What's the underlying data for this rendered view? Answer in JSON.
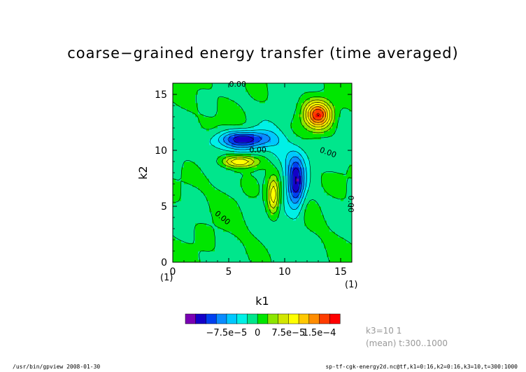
{
  "chart_data": {
    "type": "heatmap",
    "title": "coarse−grained energy transfer (time averaged)",
    "xlabel": "k1",
    "ylabel": "k2",
    "xlim": [
      0,
      16
    ],
    "ylim": [
      0,
      16
    ],
    "x_ticks": [
      {
        "value": 0,
        "label": "0"
      },
      {
        "value": 5,
        "label": "5"
      },
      {
        "value": 10,
        "label": "10"
      },
      {
        "value": 15,
        "label": "15"
      }
    ],
    "y_ticks": [
      {
        "value": 0,
        "label": "0"
      },
      {
        "value": 5,
        "label": "5"
      },
      {
        "value": 10,
        "label": "10"
      },
      {
        "value": 15,
        "label": "15"
      }
    ],
    "x_unit": "(1)",
    "y_unit": "(1)",
    "grid": false,
    "features": [
      {
        "x": 6.3,
        "y": 11.0,
        "amp": -0.00014,
        "sx": 1.6,
        "sy": 0.55
      },
      {
        "x": 11.0,
        "y": 7.0,
        "amp": -0.00014,
        "sx": 0.55,
        "sy": 1.6
      },
      {
        "x": 13.0,
        "y": 13.2,
        "amp": 0.00017,
        "sx": 0.85,
        "sy": 0.85
      },
      {
        "x": 6.0,
        "y": 9.0,
        "amp": 0.000115,
        "sx": 1.2,
        "sy": 0.4
      },
      {
        "x": 9.0,
        "y": 6.0,
        "amp": 0.000115,
        "sx": 0.4,
        "sy": 1.2
      }
    ],
    "contour_labels": [
      {
        "text": "0.00",
        "x": 5.8,
        "y": 15.7,
        "angle": 0
      },
      {
        "text": "0.00",
        "x": 7.6,
        "y": 9.8,
        "angle": 0
      },
      {
        "text": "0.00",
        "x": 13.8,
        "y": 9.6,
        "angle": 20
      },
      {
        "text": "0.00",
        "x": 4.3,
        "y": 3.8,
        "angle": 40
      },
      {
        "text": "0.00",
        "x": 15.7,
        "y": 5.2,
        "angle": 90
      }
    ],
    "colorbar": {
      "levels": [
        -0.000175,
        -0.00015,
        -0.000125,
        -0.0001,
        -7.5e-05,
        -5e-05,
        -2.5e-05,
        0,
        2.5e-05,
        5e-05,
        7.5e-05,
        0.0001,
        0.000125,
        0.00015,
        0.000175
      ],
      "colors": [
        "#7a00b4",
        "#1400c8",
        "#0040f0",
        "#0a8cff",
        "#00c8ff",
        "#00f0e6",
        "#00e68c",
        "#00e600",
        "#8ce600",
        "#d2e600",
        "#ffff00",
        "#ffc800",
        "#ff8c00",
        "#ff3c00",
        "#ff0000"
      ],
      "tick_labels": [
        {
          "label": "−7.5e−5",
          "value": -7.5e-05
        },
        {
          "label": "0",
          "value": 0
        },
        {
          "label": "7.5e−5",
          "value": 7.5e-05
        },
        {
          "label": "1.5e−4",
          "value": 0.00015
        }
      ]
    },
    "info_lines": [
      "k3=10  1",
      "(mean) t:300..1000"
    ]
  },
  "footer": {
    "left": "/usr/bin/gpview   2008-01-30",
    "right": "sp-tf-cgk-energy2d.nc@tf,k1=0:16,k2=0:16,k3=10,t=300:1000"
  }
}
